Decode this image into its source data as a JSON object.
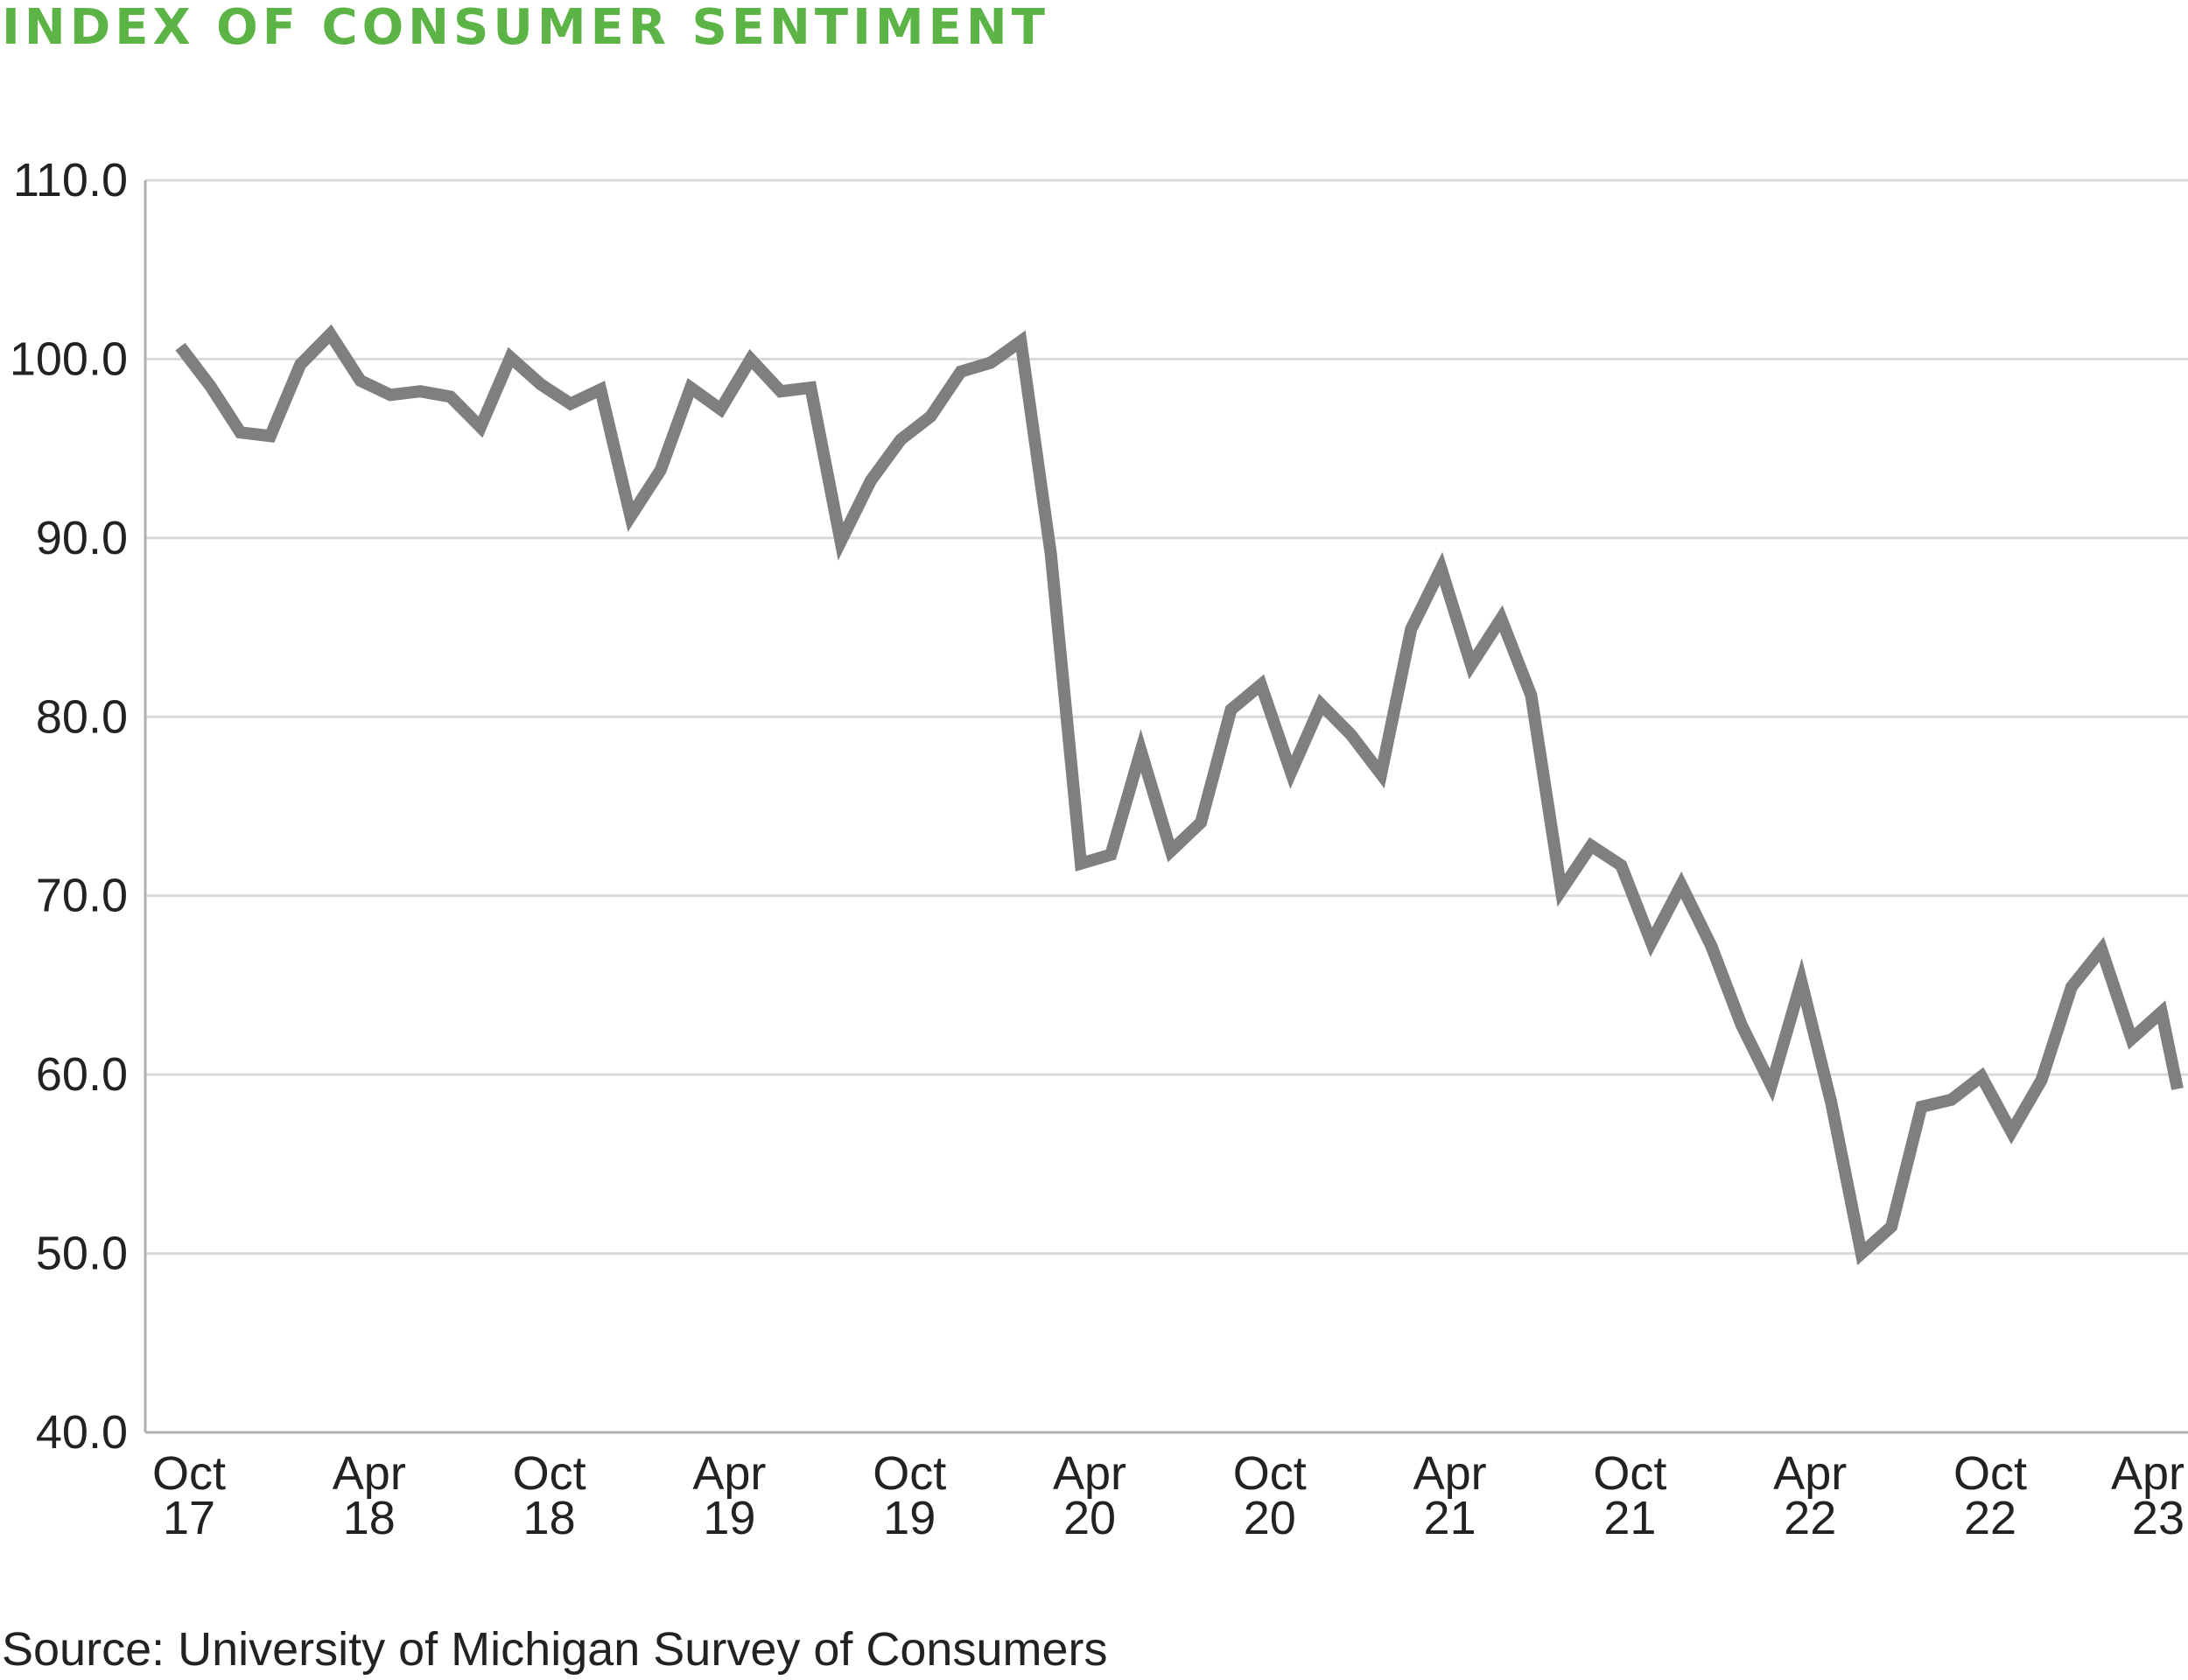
{
  "chart_data": {
    "type": "line",
    "title": "INDEX OF CONSUMER SENTIMENT",
    "source": "Source: University of Michigan Survey of Consumers",
    "ylim": [
      40,
      110
    ],
    "yticks": [
      40,
      50,
      60,
      70,
      80,
      90,
      100,
      110
    ],
    "ytick_labels": [
      "40.0",
      "50.0",
      "60.0",
      "70.0",
      "80.0",
      "90.0",
      "100.0",
      "110.0"
    ],
    "x_tick_labels": [
      {
        "month": "Oct",
        "year": "17"
      },
      {
        "month": "Apr",
        "year": "18"
      },
      {
        "month": "Oct",
        "year": "18"
      },
      {
        "month": "Apr",
        "year": "19"
      },
      {
        "month": "Oct",
        "year": "19"
      },
      {
        "month": "Apr",
        "year": "20"
      },
      {
        "month": "Oct",
        "year": "20"
      },
      {
        "month": "Apr",
        "year": "21"
      },
      {
        "month": "Oct",
        "year": "21"
      },
      {
        "month": "Apr",
        "year": "22"
      },
      {
        "month": "Oct",
        "year": "22"
      },
      {
        "month": "Apr",
        "year": "23"
      }
    ],
    "grid": true,
    "line_color": "#7f7f7f",
    "title_color": "#5db446",
    "series": [
      {
        "x": [
          "2017-10",
          "2017-11",
          "2017-12",
          "2018-01",
          "2018-02",
          "2018-03",
          "2018-04",
          "2018-05",
          "2018-06",
          "2018-07",
          "2018-08",
          "2018-09",
          "2018-10",
          "2018-11",
          "2018-12",
          "2019-01",
          "2019-02",
          "2019-03",
          "2019-04",
          "2019-05",
          "2019-06",
          "2019-07",
          "2019-08",
          "2019-09",
          "2019-10",
          "2019-11",
          "2019-12",
          "2020-01",
          "2020-02",
          "2020-03",
          "2020-04",
          "2020-05",
          "2020-06",
          "2020-07",
          "2020-08",
          "2020-09",
          "2020-10",
          "2020-11",
          "2020-12",
          "2021-01",
          "2021-02",
          "2021-03",
          "2021-04",
          "2021-05",
          "2021-06",
          "2021-07",
          "2021-08",
          "2021-09",
          "2021-10",
          "2021-11",
          "2021-12",
          "2022-01",
          "2022-02",
          "2022-03",
          "2022-04",
          "2022-05",
          "2022-06",
          "2022-07",
          "2022-08",
          "2022-09",
          "2022-10",
          "2022-11",
          "2022-12",
          "2023-01",
          "2023-02",
          "2023-03",
          "2023-04",
          "2023-05"
        ],
        "values": [
          100.7,
          98.5,
          95.9,
          95.7,
          99.7,
          101.4,
          98.8,
          98.0,
          98.2,
          97.9,
          96.2,
          100.1,
          98.6,
          97.5,
          98.3,
          91.2,
          93.8,
          98.4,
          97.2,
          100.0,
          98.2,
          98.4,
          89.8,
          93.2,
          95.5,
          96.8,
          99.3,
          99.8,
          101.0,
          89.1,
          71.8,
          72.3,
          78.1,
          72.5,
          74.1,
          80.4,
          81.8,
          76.9,
          80.7,
          79.0,
          76.8,
          84.9,
          88.3,
          82.9,
          85.5,
          81.2,
          70.3,
          72.8,
          71.7,
          67.4,
          70.6,
          67.2,
          62.8,
          59.4,
          65.2,
          58.4,
          50.0,
          51.5,
          58.2,
          58.6,
          59.9,
          56.8,
          59.7,
          64.9,
          67.0,
          62.0,
          63.5,
          59.2
        ]
      }
    ]
  }
}
